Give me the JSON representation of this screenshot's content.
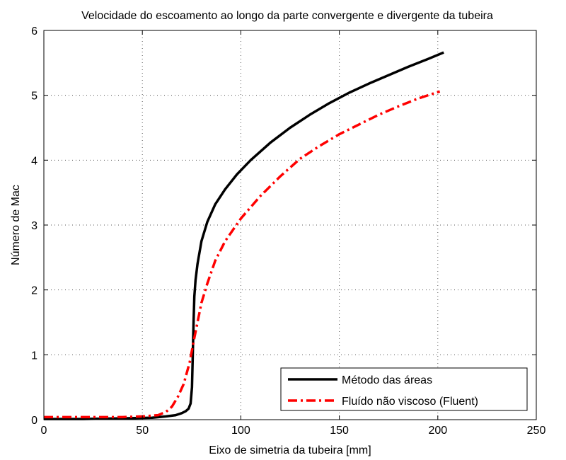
{
  "chart_data": {
    "type": "line",
    "title": "Velocidade do escoamento ao longo da parte convergente e divergente da tubeira",
    "xlabel": "Eixo de simetria da tubeira [mm]",
    "ylabel": "Número de Mac",
    "xlim": [
      0,
      250
    ],
    "ylim": [
      0,
      6
    ],
    "xticks": [
      "0",
      "50",
      "100",
      "150",
      "200",
      "250"
    ],
    "yticks": [
      "0",
      "1",
      "2",
      "3",
      "4",
      "5",
      "6"
    ],
    "grid": true,
    "legend_position": "bottom-right",
    "series": [
      {
        "name": "Método das áreas",
        "color": "#000000",
        "style": "solid",
        "points": [
          [
            0,
            0.01
          ],
          [
            20,
            0.01
          ],
          [
            40,
            0.02
          ],
          [
            55,
            0.03
          ],
          [
            62,
            0.05
          ],
          [
            67,
            0.07
          ],
          [
            70,
            0.1
          ],
          [
            72,
            0.13
          ],
          [
            73.5,
            0.17
          ],
          [
            74.5,
            0.25
          ],
          [
            75.2,
            0.5
          ],
          [
            75.6,
            1.0
          ],
          [
            76.0,
            1.5
          ],
          [
            76.4,
            1.9
          ],
          [
            77,
            2.15
          ],
          [
            78,
            2.4
          ],
          [
            80,
            2.75
          ],
          [
            83,
            3.05
          ],
          [
            87,
            3.32
          ],
          [
            92,
            3.55
          ],
          [
            98,
            3.78
          ],
          [
            105,
            4.0
          ],
          [
            115,
            4.27
          ],
          [
            125,
            4.5
          ],
          [
            135,
            4.7
          ],
          [
            145,
            4.88
          ],
          [
            155,
            5.04
          ],
          [
            165,
            5.18
          ],
          [
            175,
            5.31
          ],
          [
            185,
            5.44
          ],
          [
            195,
            5.56
          ],
          [
            203,
            5.66
          ]
        ]
      },
      {
        "name": "Fluído não viscoso (Fluent)",
        "color": "#ff0000",
        "style": "dashdot",
        "points": [
          [
            0,
            0.04
          ],
          [
            20,
            0.04
          ],
          [
            40,
            0.04
          ],
          [
            50,
            0.05
          ],
          [
            58,
            0.07
          ],
          [
            62,
            0.12
          ],
          [
            65,
            0.2
          ],
          [
            68,
            0.35
          ],
          [
            71,
            0.55
          ],
          [
            74,
            0.88
          ],
          [
            76,
            1.2
          ],
          [
            78,
            1.5
          ],
          [
            80,
            1.8
          ],
          [
            83,
            2.1
          ],
          [
            87,
            2.45
          ],
          [
            92,
            2.75
          ],
          [
            100,
            3.1
          ],
          [
            110,
            3.45
          ],
          [
            120,
            3.75
          ],
          [
            130,
            4.02
          ],
          [
            140,
            4.22
          ],
          [
            150,
            4.4
          ],
          [
            160,
            4.55
          ],
          [
            170,
            4.7
          ],
          [
            180,
            4.83
          ],
          [
            190,
            4.95
          ],
          [
            201,
            5.06
          ]
        ]
      }
    ]
  }
}
